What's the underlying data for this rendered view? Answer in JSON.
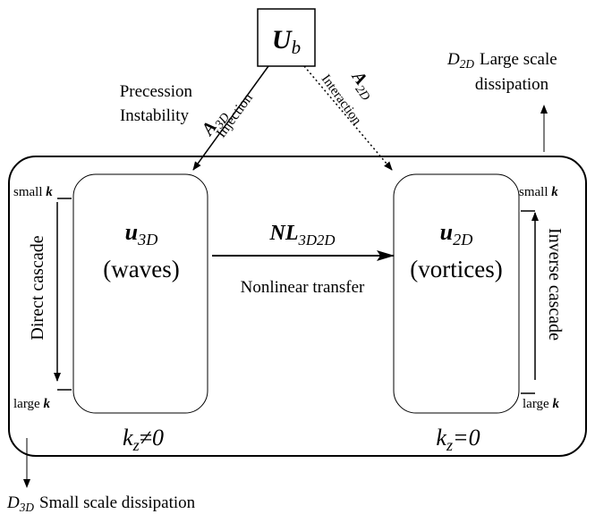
{
  "source": {
    "symbol": "U",
    "sub": "b"
  },
  "instability": [
    "Precession",
    "Instability"
  ],
  "injection": {
    "symbol": "A",
    "sub": "3D",
    "label": "Injection"
  },
  "interaction": {
    "symbol": "A",
    "sub": "2D",
    "label": "Interaction"
  },
  "large_dissipation": {
    "symbol": "D",
    "sub": "2D",
    "lines": [
      "Large scale",
      "dissipation"
    ]
  },
  "small_dissipation": {
    "symbol": "D",
    "sub": "3D",
    "label": "Small scale dissipation"
  },
  "left_scale": {
    "top": {
      "word": "small",
      "symbol": "k"
    },
    "bottom": {
      "word": "large",
      "symbol": "k"
    },
    "label": "Direct cascade"
  },
  "right_scale": {
    "top": {
      "word": "small",
      "symbol": "k"
    },
    "bottom": {
      "word": "large",
      "symbol": "k"
    },
    "label": "Inverse cascade"
  },
  "waves": {
    "symbol": "u",
    "sub": "3D",
    "label": "(waves)",
    "mode": {
      "symbol": "k",
      "sub": "z",
      "rel": "≠0"
    }
  },
  "vortices": {
    "symbol": "u",
    "sub": "2D",
    "label": "(vortices)",
    "mode": {
      "symbol": "k",
      "sub": "z",
      "rel": "=0"
    }
  },
  "transfer": {
    "symbol": "NL",
    "sub": "3D2D",
    "label": "Nonlinear transfer"
  }
}
